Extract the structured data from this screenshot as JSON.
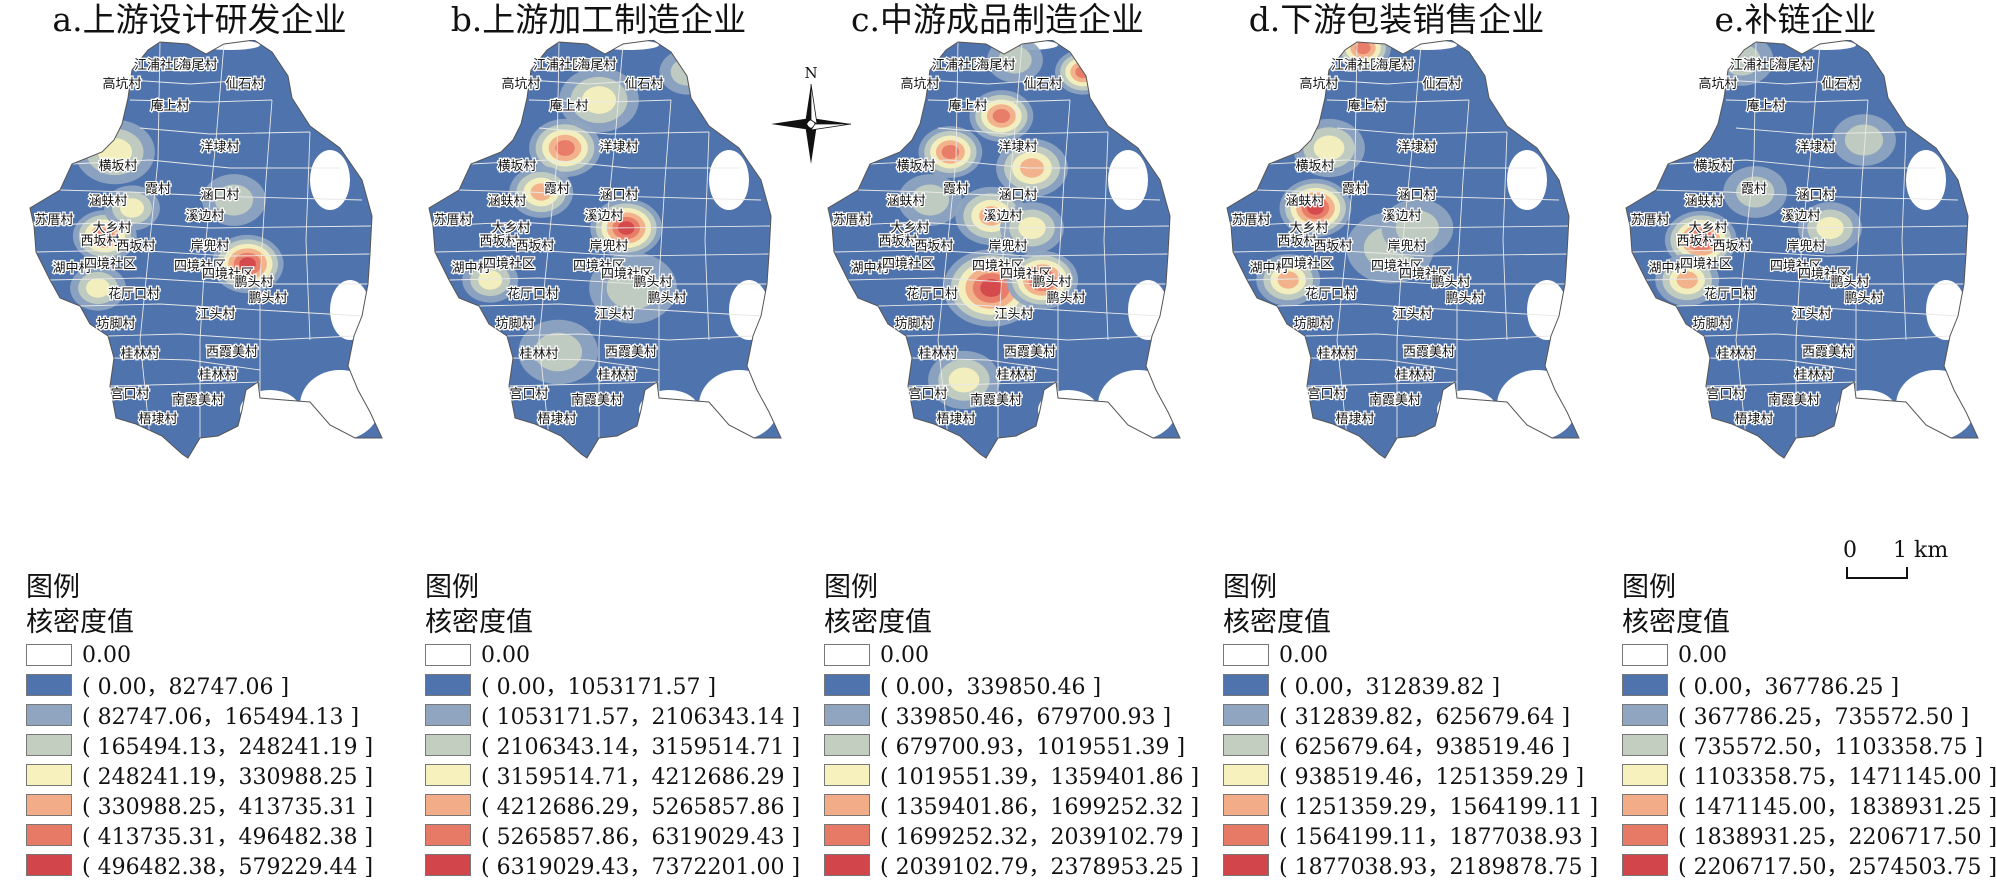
{
  "panels": [
    {
      "id": "a",
      "title": "a.上游设计研发企业",
      "legend_title": "图例",
      "legend_subtitle": "核密度值",
      "zero_label": "0.00",
      "ranges": [
        "( 0.00，82747.06 ]",
        "( 82747.06，165494.13 ]",
        "( 165494.13，248241.19 ]",
        "( 248241.19，330988.25 ]",
        "( 330988.25，413735.31 ]",
        "( 413735.31，496482.38 ]",
        "( 496482.38，579229.44 ]"
      ],
      "hotspots": [
        [
          0.64,
          0.56,
          1.0,
          18
        ],
        [
          0.22,
          0.49,
          0.8,
          16
        ],
        [
          0.25,
          0.28,
          0.55,
          20
        ],
        [
          0.3,
          0.42,
          0.5,
          14
        ],
        [
          0.2,
          0.62,
          0.55,
          14
        ],
        [
          0.6,
          0.4,
          0.35,
          16
        ]
      ]
    },
    {
      "id": "b",
      "title": "b.上游加工制造企业",
      "legend_title": "图例",
      "legend_subtitle": "核密度值",
      "zero_label": "0.00",
      "ranges": [
        "( 0.00，1053171.57 ]",
        "( 1053171.57，2106343.14 ]",
        "( 2106343.14，3159514.71 ]",
        "( 3159514.71，4212686.29 ]",
        "( 4212686.29，5265857.86 ]",
        "( 5265857.86，6319029.43 ]",
        "( 6319029.43，7372201.00 ]"
      ],
      "hotspots": [
        [
          0.4,
          0.27,
          0.85,
          18
        ],
        [
          0.58,
          0.47,
          0.95,
          18
        ],
        [
          0.33,
          0.38,
          0.6,
          16
        ],
        [
          0.18,
          0.6,
          0.55,
          14
        ],
        [
          0.5,
          0.15,
          0.45,
          20
        ],
        [
          0.6,
          0.62,
          0.4,
          22
        ],
        [
          0.38,
          0.78,
          0.3,
          20
        ],
        [
          0.76,
          0.08,
          0.35,
          14
        ]
      ]
    },
    {
      "id": "c",
      "title": "c.中游成品制造企业",
      "legend_title": "图例",
      "legend_subtitle": "核密度值",
      "zero_label": "0.00",
      "ranges": [
        "( 0.00，339850.46 ]",
        "( 339850.46，679700.93 ]",
        "( 679700.93，1019551.39 ]",
        "( 1019551.39，1359401.86 ]",
        "( 1359401.86，1699252.32 ]",
        "( 1699252.32，2039102.79 ]",
        "( 2039102.79，2378953.25 ]"
      ],
      "hotspots": [
        [
          0.48,
          0.62,
          1.0,
          24
        ],
        [
          0.63,
          0.6,
          0.95,
          18
        ],
        [
          0.51,
          0.19,
          0.9,
          16
        ],
        [
          0.75,
          0.08,
          0.85,
          14
        ],
        [
          0.36,
          0.28,
          0.75,
          16
        ],
        [
          0.6,
          0.32,
          0.65,
          18
        ],
        [
          0.48,
          0.44,
          0.6,
          18
        ],
        [
          0.6,
          0.47,
          0.55,
          16
        ],
        [
          0.4,
          0.85,
          0.45,
          18
        ],
        [
          0.3,
          0.4,
          0.4,
          16
        ],
        [
          0.55,
          0.05,
          0.4,
          14
        ]
      ]
    },
    {
      "id": "d",
      "title": "d.下游包装销售企业",
      "legend_title": "图例",
      "legend_subtitle": "核密度值",
      "zero_label": "0.00",
      "ranges": [
        "( 0.00，312839.82 ]",
        "( 312839.82，625679.64 ]",
        "( 625679.64，938519.46 ]",
        "( 938519.46，1251359.29 ]",
        "( 1251359.29，1564199.11 ]",
        "( 1564199.11，1877038.93 ]",
        "( 1877038.93，2189878.75 ]"
      ],
      "hotspots": [
        [
          0.26,
          0.42,
          1.0,
          18
        ],
        [
          0.4,
          0.02,
          0.85,
          14
        ],
        [
          0.18,
          0.6,
          0.6,
          16
        ],
        [
          0.3,
          0.27,
          0.5,
          18
        ],
        [
          0.48,
          0.52,
          0.4,
          22
        ],
        [
          0.56,
          0.47,
          0.35,
          18
        ]
      ]
    },
    {
      "id": "e",
      "title": "e.补链企业",
      "legend_title": "图例",
      "legend_subtitle": "核密度值",
      "zero_label": "0.00",
      "ranges": [
        "( 0.00，367786.25 ]",
        "( 367786.25，735572.50 ]",
        "( 735572.50，1103358.75 ]",
        "( 1103358.75，1471145.00 ]",
        "( 1471145.00，1838931.25 ]",
        "( 1838931.25，2206717.50 ]",
        "( 2206717.50，2574503.75 ]"
      ],
      "hotspots": [
        [
          0.22,
          0.5,
          1.0,
          18
        ],
        [
          0.18,
          0.6,
          0.6,
          16
        ],
        [
          0.6,
          0.47,
          0.45,
          16
        ],
        [
          0.7,
          0.25,
          0.4,
          16
        ],
        [
          0.34,
          0.05,
          0.3,
          16
        ],
        [
          0.38,
          0.38,
          0.3,
          16
        ]
      ]
    }
  ],
  "colors": {
    "base": "#4f73ad",
    "ramp": [
      "#ffffff",
      "#4f73ad",
      "#8fa5c0",
      "#c3cec0",
      "#f6f1bd",
      "#f2ad88",
      "#e77a66",
      "#d2454a"
    ],
    "boundary": "#e8e8e8",
    "outline": "#555555"
  },
  "villages": [
    "江浦社区",
    "海尾村",
    "仙石村",
    "高坑村",
    "庵上村",
    "洋埭村",
    "横坂村",
    "霞村",
    "涵口村",
    "涵蚨村",
    "溪边村",
    "苏厝村",
    "大乡村",
    "西坂村",
    "西坂村",
    "岸兜村",
    "湖中村",
    "四境社区",
    "四境社区",
    "四境社区",
    "鹏头村",
    "鹏头村",
    "花厅口村",
    "江头村",
    "坊脚村",
    "桂林村",
    "西霞美村",
    "桂林村",
    "宫口村",
    "南霞美村",
    "梧埭村"
  ],
  "north_label": "N",
  "scale": {
    "zero": "0",
    "one": "1 km"
  }
}
